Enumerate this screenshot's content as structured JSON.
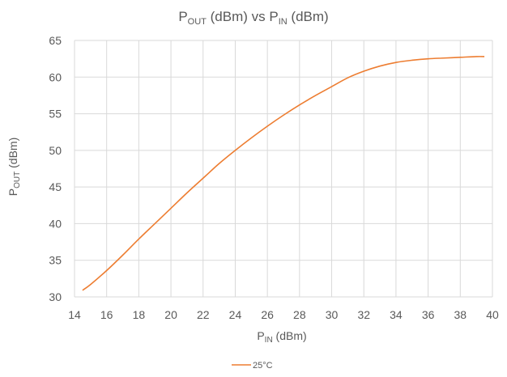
{
  "chart_data": {
    "type": "line",
    "title": {
      "main": "P",
      "main_sub": "OUT",
      "middle": " (dBm) vs P",
      "middle_sub": "IN",
      "tail": " (dBm)"
    },
    "xlabel": {
      "main": "P",
      "sub": "IN",
      "tail": " (dBm)"
    },
    "ylabel": {
      "main": "P",
      "sub": "OUT",
      "tail": " (dBm)"
    },
    "xlim": [
      14,
      40
    ],
    "ylim": [
      30,
      65
    ],
    "xticks": [
      14,
      16,
      18,
      20,
      22,
      24,
      26,
      28,
      30,
      32,
      34,
      36,
      38,
      40
    ],
    "yticks": [
      30,
      35,
      40,
      45,
      50,
      55,
      60,
      65
    ],
    "grid": {
      "vertical": true,
      "horizontal": true
    },
    "legend_position": "bottom-center",
    "series": [
      {
        "name": "25°C",
        "color": "#ED7D31",
        "x": [
          14.5,
          15,
          16,
          17,
          18,
          19,
          20,
          21,
          22,
          23,
          24,
          25,
          26,
          27,
          28,
          29,
          30,
          31,
          32,
          33,
          34,
          35,
          36,
          37,
          38,
          39,
          39.5
        ],
        "y": [
          30.9,
          31.7,
          33.6,
          35.7,
          37.9,
          40.0,
          42.1,
          44.2,
          46.2,
          48.2,
          50.0,
          51.7,
          53.3,
          54.8,
          56.2,
          57.5,
          58.7,
          59.9,
          60.8,
          61.5,
          62.0,
          62.3,
          62.5,
          62.6,
          62.7,
          62.8,
          62.8
        ]
      }
    ]
  }
}
